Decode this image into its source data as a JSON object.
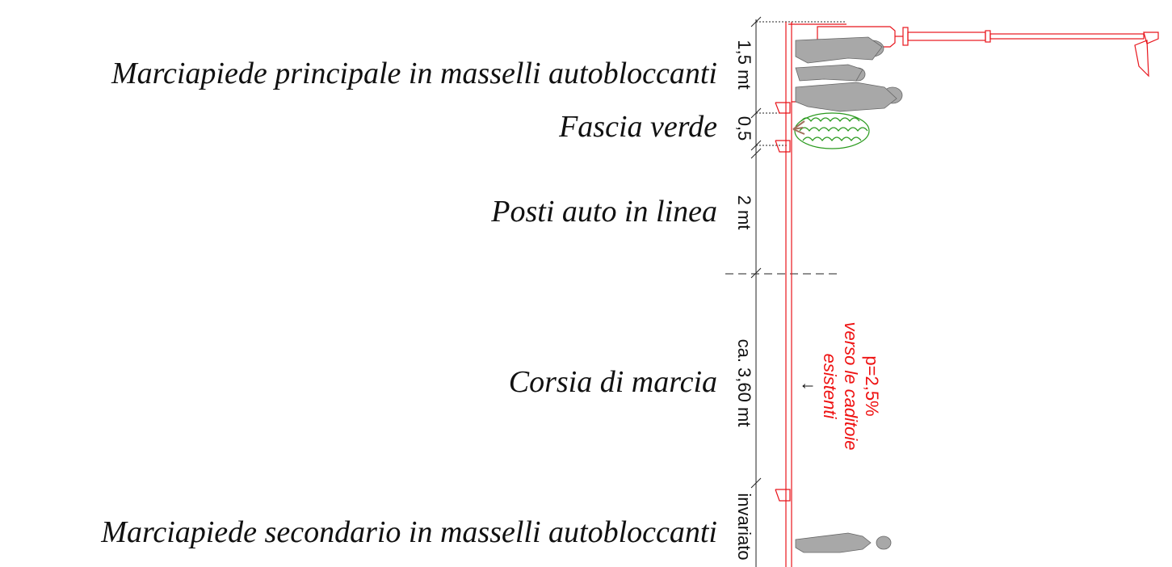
{
  "section_labels": {
    "main_sidewalk": "Marciapiede principale in masselli autobloccanti",
    "green_strip": "Fascia verde",
    "parking": "Posti auto in linea",
    "lane": "Corsia di marcia",
    "secondary_sidewalk": "Marciapiede secondario in masselli autobloccanti"
  },
  "dimensions": {
    "main_sidewalk": "1,5 mt",
    "green_strip": "0,5",
    "parking": "2 mt",
    "lane": "ca. 3,60 mt",
    "secondary_sidewalk": "invariato"
  },
  "slope_note": {
    "value": "p=2,5%",
    "line1": "verso le caditoie",
    "line2": "esistenti",
    "arrow": "↓"
  },
  "colors": {
    "plan_lines": "#e8141b",
    "hedge": "#2a9a1e",
    "people": "#a8a8a8",
    "trunk": "#a0705a"
  }
}
